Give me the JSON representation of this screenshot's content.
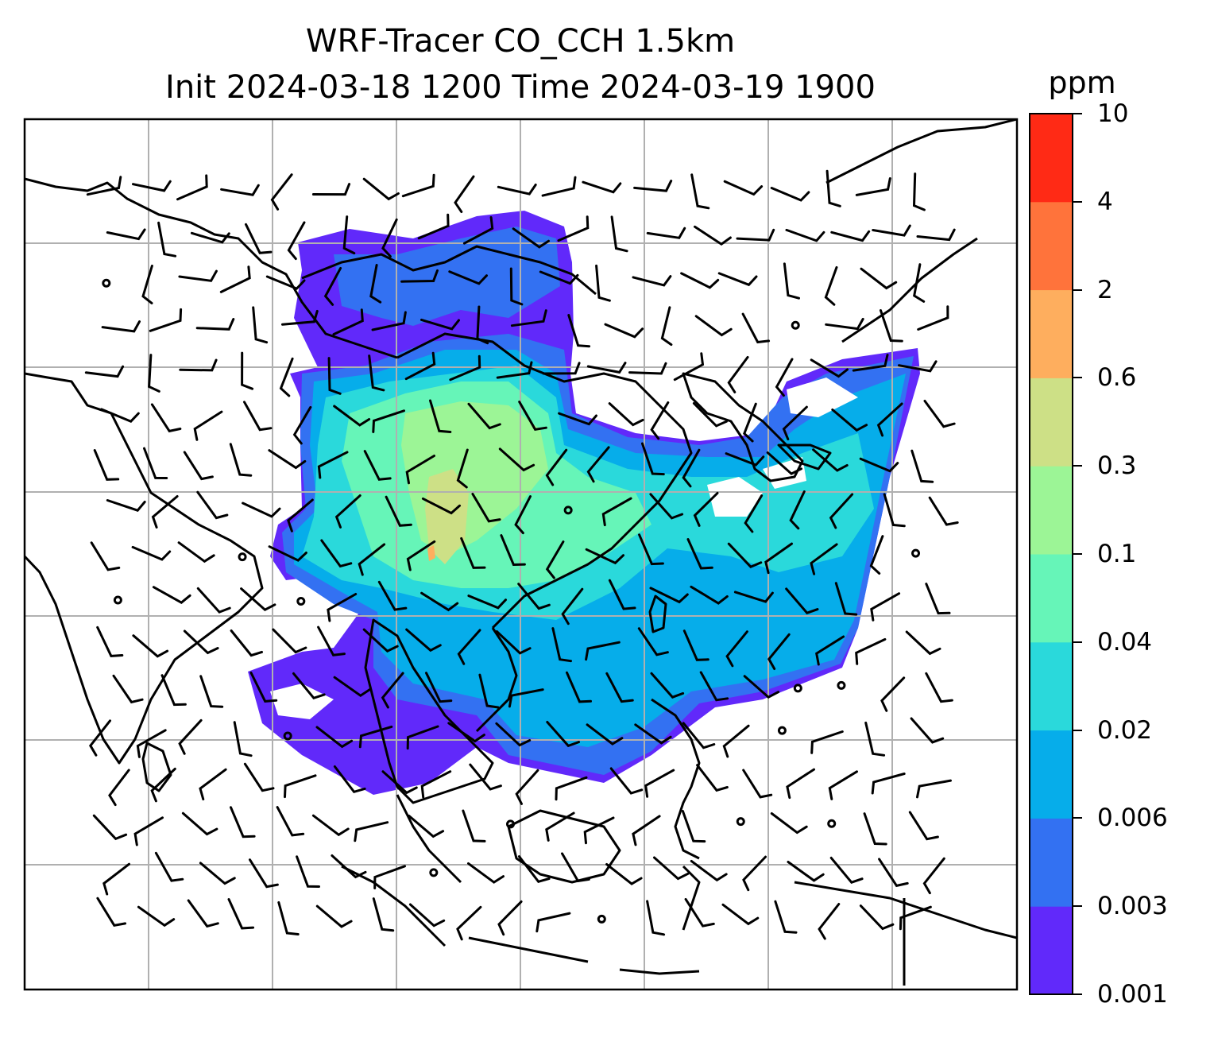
{
  "title": {
    "line1": "WRF-Tracer CO_CCH 1.5km",
    "line2": "Init 2024-03-18 1200 Time 2024-03-19 1900"
  },
  "colorbar": {
    "unit": "ppm",
    "levels": [
      "0.001",
      "0.003",
      "0.006",
      "0.02",
      "0.04",
      "0.1",
      "0.3",
      "0.6",
      "2",
      "4",
      "10"
    ],
    "colors": [
      "#6129fa",
      "#3371f2",
      "#06adea",
      "#2ad9db",
      "#66f5b8",
      "#9cf596",
      "#cde086",
      "#feae5e",
      "#ff733b",
      "#ff2a15"
    ]
  },
  "map": {
    "variable": "CO tracer concentration with wind barbs",
    "gridlines": true
  }
}
